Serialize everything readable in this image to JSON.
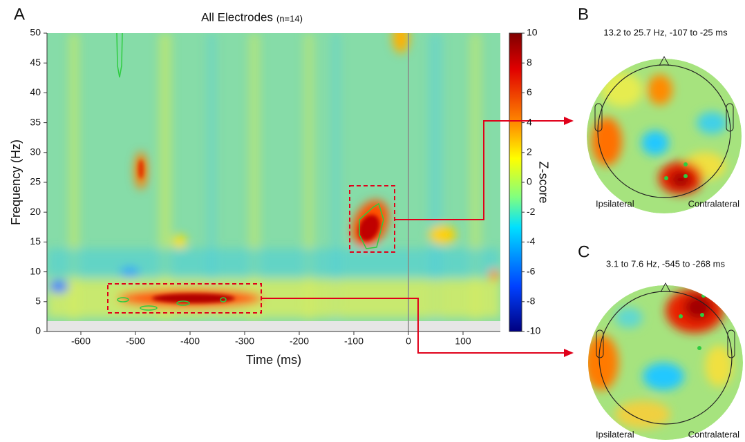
{
  "panels": {
    "a": {
      "label": "A",
      "title": "All Electrodes",
      "title_note": "(n=14)",
      "xlabel": "Time (ms)",
      "ylabel": "Frequency (Hz)",
      "xticks": [
        -600,
        -500,
        -400,
        -300,
        -200,
        -100,
        0,
        100
      ],
      "yticks": [
        0,
        5,
        10,
        15,
        20,
        25,
        30,
        35,
        40,
        45,
        50
      ],
      "colorbar": {
        "label": "Z-score",
        "ticks": [
          10,
          8,
          6,
          4,
          2,
          0,
          -2,
          -4,
          -6,
          -8,
          -10
        ]
      }
    },
    "b": {
      "label": "B",
      "title": "13.2 to 25.7 Hz, -107 to -25 ms",
      "left": "Ipsilateral",
      "right": "Contralateral"
    },
    "c": {
      "label": "C",
      "title": "3.1 to 7.6 Hz, -545 to -268 ms",
      "left": "Ipsilateral",
      "right": "Contralateral"
    }
  }
}
